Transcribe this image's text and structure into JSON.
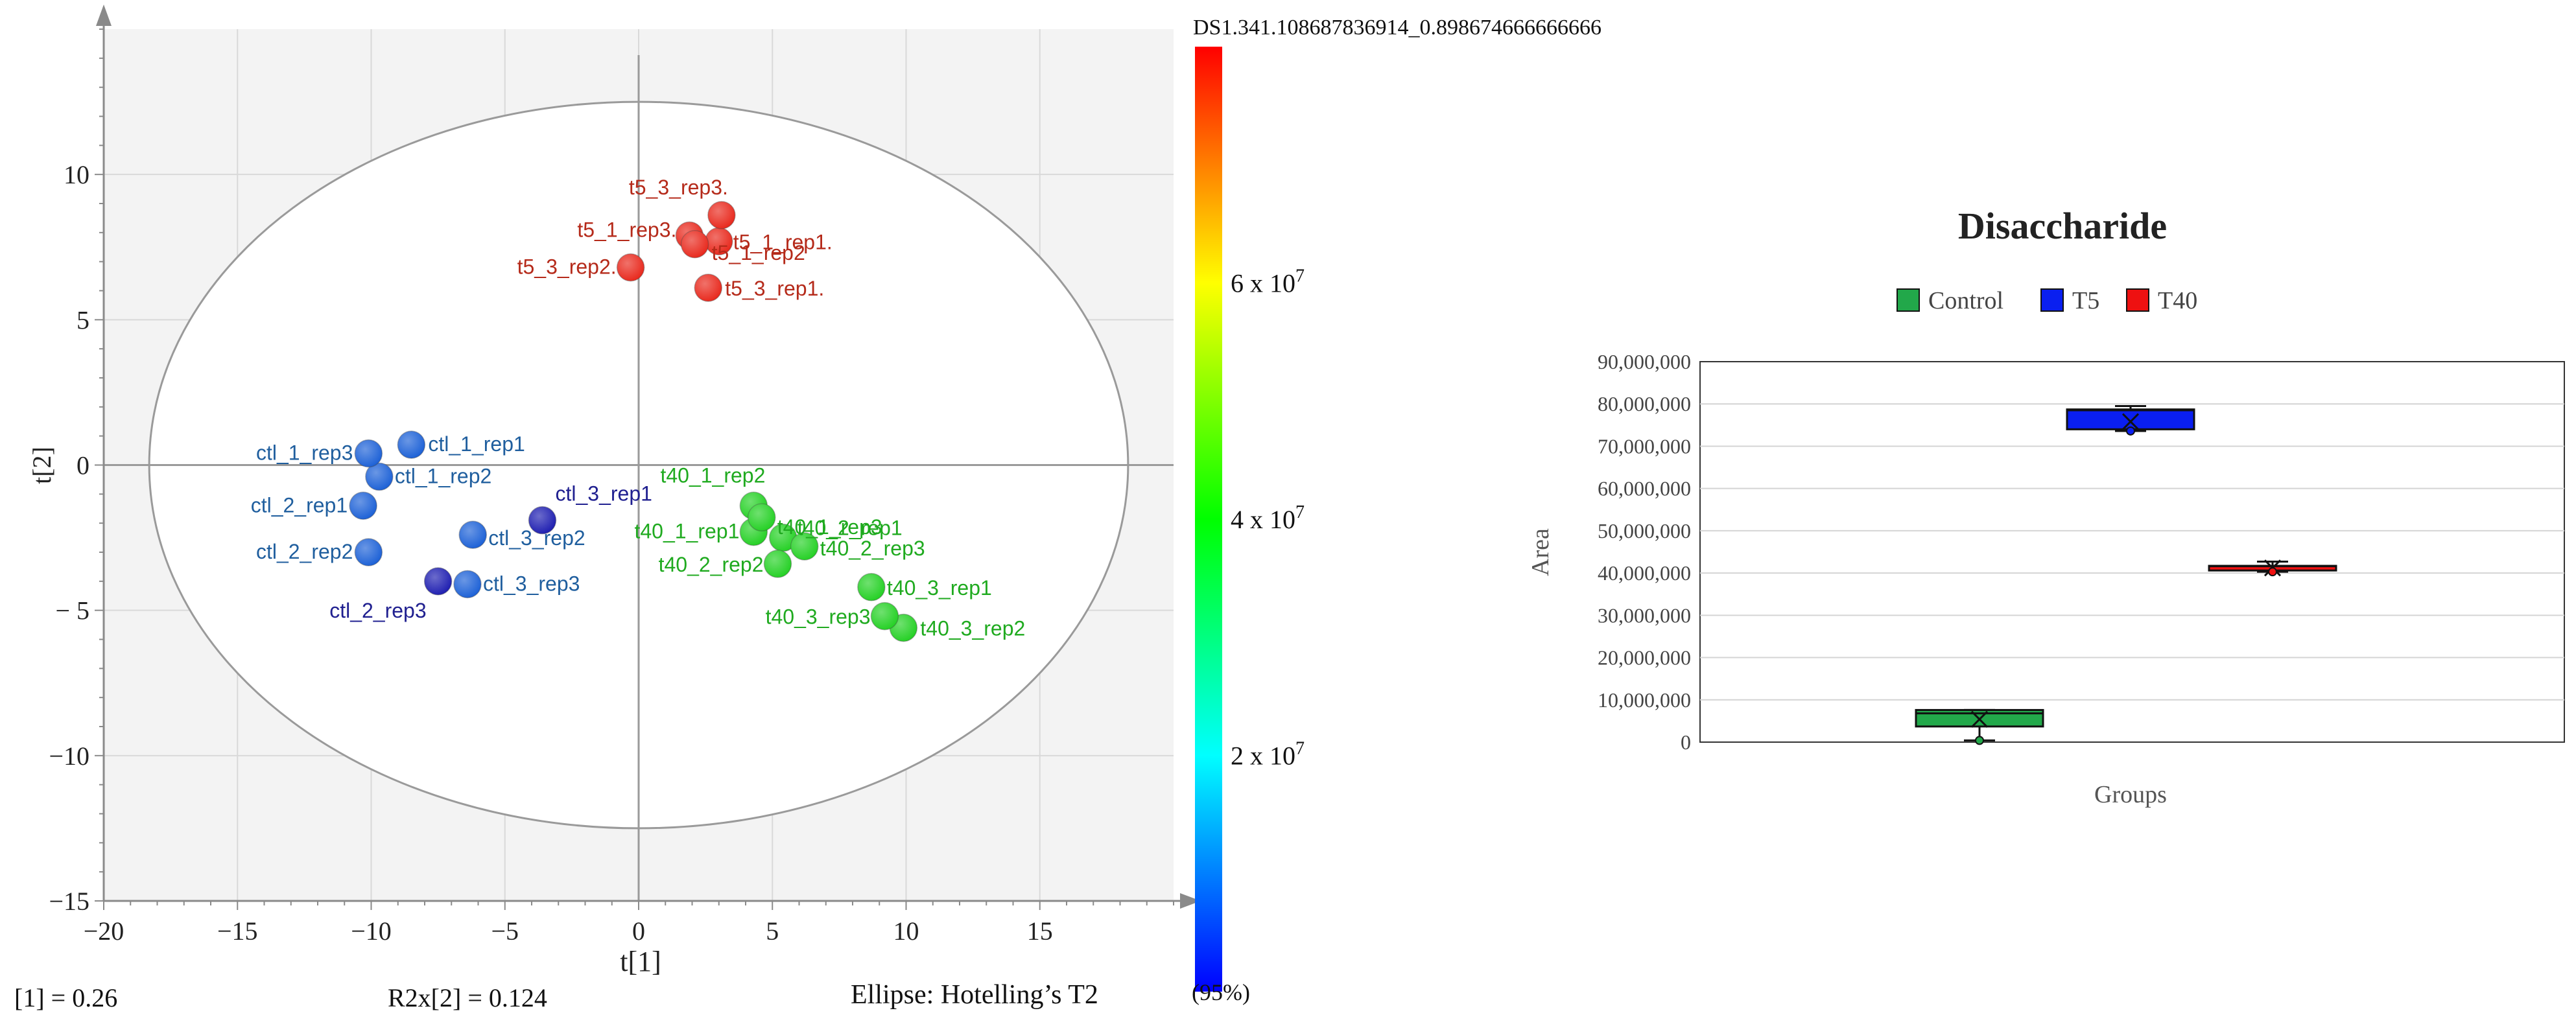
{
  "scores_plot": {
    "xlabel": "t[1]",
    "ylabel": "t[2]",
    "colorbar_title": "DS1.341.108687836914_0.898674666666666",
    "colorbar_ticks": [
      {
        "mantissa": "2 x 10",
        "exp": "7"
      },
      {
        "mantissa": "4 x 10",
        "exp": "7"
      },
      {
        "mantissa": "6 x 10",
        "exp": "7"
      }
    ],
    "footer_left": "[1] = 0.26",
    "footer_mid": "R2x[2] = 0.124",
    "footer_right": "Ellipse:  Hotelling’s T2",
    "footer_right_suffix": "(95%)",
    "colors": {
      "blue": "#1a5fd6",
      "dark_blue": "#1c1cb0",
      "green": "#22d022",
      "red": "#e8261a",
      "label_blue": "#1f5e9e",
      "label_navy": "#202090",
      "label_green": "#1faa1f",
      "label_red": "#b52a1a"
    }
  },
  "box_plot": {
    "title": "Disaccharide",
    "xlabel": "Groups",
    "ylabel": "Area",
    "legend": [
      "Control",
      "T5",
      "T40"
    ],
    "colors": {
      "Control": "#22a84a",
      "T5": "#0a1ff0",
      "T40": "#ee1111"
    }
  },
  "chart_data": [
    {
      "type": "scatter",
      "title": "",
      "xlabel": "t[1]",
      "ylabel": "t[2]",
      "xlim": [
        -20,
        20
      ],
      "ylim": [
        -15,
        15
      ],
      "xticks": [
        -20,
        -15,
        -10,
        -5,
        0,
        5,
        10,
        15
      ],
      "yticks": [
        -15,
        -10,
        -5,
        0,
        5,
        10
      ],
      "ytick_labels": [
        "−15",
        "−10",
        "− 5",
        "0",
        "5",
        "10"
      ],
      "xtick_labels": [
        "−20",
        "−15",
        "−10",
        "−5",
        "0",
        "5",
        "10",
        "15"
      ],
      "grid": true,
      "ellipse": {
        "cx": 0,
        "cy": 0,
        "rx": 18.3,
        "ry": 12.5
      },
      "colorbar": {
        "min": 0,
        "max": 80000000,
        "ticks": [
          20000000,
          40000000,
          60000000
        ]
      },
      "points": [
        {
          "label": "ctl_1_rep1",
          "x": -8.5,
          "y": 0.7,
          "c": "blue"
        },
        {
          "label": "ctl_1_rep2",
          "x": -9.7,
          "y": -0.4,
          "c": "blue"
        },
        {
          "label": "ctl_1_rep3",
          "x": -10.1,
          "y": 0.4,
          "c": "blue"
        },
        {
          "label": "ctl_2_rep1",
          "x": -10.3,
          "y": -1.4,
          "c": "blue"
        },
        {
          "label": "ctl_2_rep2",
          "x": -10.1,
          "y": -3.0,
          "c": "blue"
        },
        {
          "label": "ctl_2_rep3",
          "x": -7.5,
          "y": -4.0,
          "c": "dark_blue"
        },
        {
          "label": "ctl_3_rep1",
          "x": -3.6,
          "y": -1.9,
          "c": "dark_blue"
        },
        {
          "label": "ctl_3_rep2",
          "x": -6.2,
          "y": -2.4,
          "c": "blue"
        },
        {
          "label": "ctl_3_rep3",
          "x": -6.4,
          "y": -4.1,
          "c": "blue"
        },
        {
          "label": "t5_1_rep1.",
          "x": 3.0,
          "y": 7.7,
          "c": "red"
        },
        {
          "label": "t5_1_rep3.",
          "x": 1.9,
          "y": 7.9,
          "c": "red"
        },
        {
          "label": "t5_1_rep2",
          "x": 2.1,
          "y": 7.6,
          "c": "red"
        },
        {
          "label": "t5_3_rep1.",
          "x": 2.6,
          "y": 6.1,
          "c": "red"
        },
        {
          "label": "t5_3_rep2.",
          "x": -0.3,
          "y": 6.8,
          "c": "red"
        },
        {
          "label": "t5_3_rep3.",
          "x": 3.1,
          "y": 8.6,
          "c": "red"
        },
        {
          "label": "t40_1_rep1",
          "x": 4.3,
          "y": -2.3,
          "c": "green"
        },
        {
          "label": "t40_1_rep2",
          "x": 4.3,
          "y": -1.4,
          "c": "green"
        },
        {
          "label": "t40_1_rep3",
          "x": 4.6,
          "y": -1.8,
          "c": "green"
        },
        {
          "label": "t40_2_rep1",
          "x": 5.4,
          "y": -2.5,
          "c": "green"
        },
        {
          "label": "t40_2_rep2",
          "x": 5.2,
          "y": -3.4,
          "c": "green"
        },
        {
          "label": "t40_2_rep3",
          "x": 6.2,
          "y": -2.8,
          "c": "green"
        },
        {
          "label": "t40_3_rep1",
          "x": 8.7,
          "y": -4.2,
          "c": "green"
        },
        {
          "label": "t40_3_rep2",
          "x": 9.9,
          "y": -5.6,
          "c": "green"
        },
        {
          "label": "t40_3_rep3",
          "x": 9.2,
          "y": -5.2,
          "c": "green"
        }
      ]
    },
    {
      "type": "box",
      "title": "Disaccharide",
      "xlabel": "Groups",
      "ylabel": "Area",
      "ylim": [
        0,
        90000000
      ],
      "yticks": [
        0,
        10000000,
        20000000,
        30000000,
        40000000,
        50000000,
        60000000,
        70000000,
        80000000,
        90000000
      ],
      "ytick_labels": [
        "0",
        "10,000,000",
        "20,000,000",
        "30,000,000",
        "40,000,000",
        "50,000,000",
        "60,000,000",
        "70,000,000",
        "80,000,000",
        "90,000,000"
      ],
      "legend_position": "top",
      "grid": true,
      "groups": [
        {
          "name": "Control",
          "min": 400000,
          "q1": 3700000,
          "median": 6800000,
          "q3": 7600000,
          "max": 7600000,
          "mean": 5400000
        },
        {
          "name": "T5",
          "min": 73600000,
          "q1": 74000000,
          "median": 78500000,
          "q3": 78700000,
          "max": 79500000,
          "mean": 75800000
        },
        {
          "name": "T40",
          "min": 40300000,
          "q1": 40600000,
          "median": 41600000,
          "q3": 41700000,
          "max": 42700000,
          "mean": 41200000
        }
      ]
    }
  ]
}
